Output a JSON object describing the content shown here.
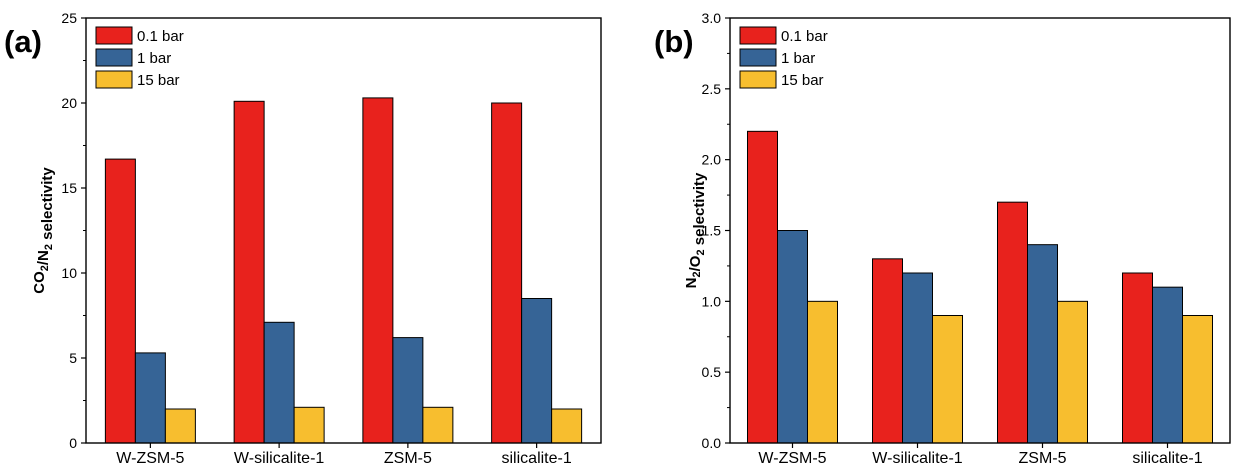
{
  "colors": {
    "series_0": "#e8221d",
    "series_1": "#366496",
    "series_2": "#f7be2f"
  },
  "chart_data": [
    {
      "type": "bar",
      "panel_label": "(a)",
      "ylabel_parts": [
        "CO",
        "2",
        "/N",
        "2",
        " selectivity"
      ],
      "ylim": [
        0,
        25
      ],
      "yticks": [
        0,
        5,
        10,
        15,
        20,
        25
      ],
      "categories": [
        "W-ZSM-5",
        "W-silicalite-1",
        "ZSM-5",
        "silicalite-1"
      ],
      "legend_position": "top-left",
      "grid": false,
      "series": [
        {
          "name": "0.1 bar",
          "values": [
            16.7,
            20.1,
            20.3,
            20.0
          ]
        },
        {
          "name": "1 bar",
          "values": [
            5.3,
            7.1,
            6.2,
            8.5
          ]
        },
        {
          "name": "15 bar",
          "values": [
            2.0,
            2.1,
            2.1,
            2.0
          ]
        }
      ]
    },
    {
      "type": "bar",
      "panel_label": "(b)",
      "ylabel_parts": [
        "N",
        "2",
        "/O",
        "2",
        " selectivity"
      ],
      "ylim": [
        0,
        3
      ],
      "yticks": [
        "0.0",
        "0.5",
        "1.0",
        "1.5",
        "2.0",
        "2.5",
        "3.0"
      ],
      "categories": [
        "W-ZSM-5",
        "W-silicalite-1",
        "ZSM-5",
        "silicalite-1"
      ],
      "legend_position": "top-left",
      "grid": false,
      "series": [
        {
          "name": "0.1 bar",
          "values": [
            2.2,
            1.3,
            1.7,
            1.2
          ]
        },
        {
          "name": "1 bar",
          "values": [
            1.5,
            1.2,
            1.4,
            1.1
          ]
        },
        {
          "name": "15 bar",
          "values": [
            1.0,
            0.9,
            1.0,
            0.9
          ]
        }
      ]
    }
  ]
}
